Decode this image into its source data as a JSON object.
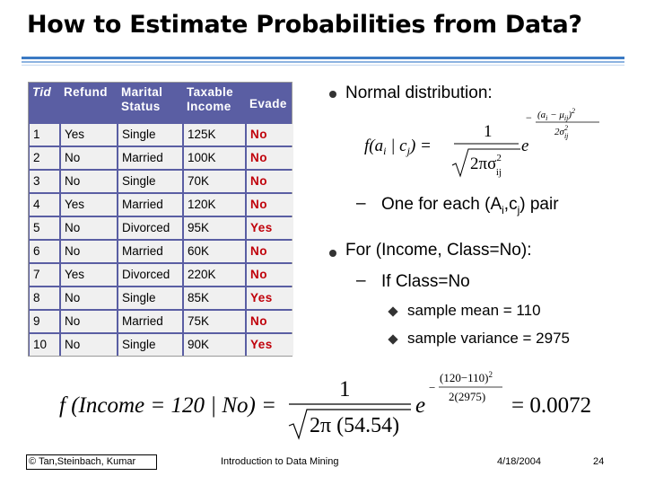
{
  "slide": {
    "title": "How to Estimate Probabilities from Data?"
  },
  "table": {
    "headers": [
      {
        "line1": "Tid",
        "line2": ""
      },
      {
        "line1": "Refund",
        "line2": ""
      },
      {
        "line1": "Marital",
        "line2": "Status"
      },
      {
        "line1": "Taxable",
        "line2": "Income"
      },
      {
        "line1": "Evade",
        "line2": ""
      }
    ],
    "rows": [
      [
        "1",
        "Yes",
        "Single",
        "125K",
        "No"
      ],
      [
        "2",
        "No",
        "Married",
        "100K",
        "No"
      ],
      [
        "3",
        "No",
        "Single",
        "70K",
        "No"
      ],
      [
        "4",
        "Yes",
        "Married",
        "120K",
        "No"
      ],
      [
        "5",
        "No",
        "Divorced",
        "95K",
        "Yes"
      ],
      [
        "6",
        "No",
        "Married",
        "60K",
        "No"
      ],
      [
        "7",
        "Yes",
        "Divorced",
        "220K",
        "No"
      ],
      [
        "8",
        "No",
        "Single",
        "85K",
        "Yes"
      ],
      [
        "9",
        "No",
        "Married",
        "75K",
        "No"
      ],
      [
        "10",
        "No",
        "Single",
        "90K",
        "Yes"
      ]
    ]
  },
  "bullets": {
    "normal": "Normal distribution:",
    "one_each_prefix": "One for each (A",
    "one_each_sub_i": "i",
    "one_each_mid": ",c",
    "one_each_sub_j": "j",
    "one_each_suffix": ") pair",
    "income_class": "For (Income, Class=No):",
    "if_class": "If Class=No",
    "mean": "sample mean = 110",
    "variance": "sample variance = 2975"
  },
  "formula1": {
    "lhs": "f(a",
    "sub_i": "i",
    "given": " | c",
    "sub_j": "j",
    "close": ") =",
    "one": "1",
    "two_pi": "2πσ",
    "sigma_sup": "2",
    "sigma_sub": "ij",
    "e": "e",
    "exp_num": "(a",
    "exp_num_sub": "i",
    "exp_num_mid": " − μ",
    "exp_num_sub2": "ij",
    "exp_num_close": ")",
    "exp_num_sq": "2",
    "exp_den": "2σ",
    "exp_den_sup": "2",
    "exp_den_sub": "ij",
    "minus": "−"
  },
  "formula2": {
    "lhs": "f (Income = 120 | No) =",
    "one": "1",
    "den": "2π (54.54)",
    "e": "e",
    "exp_minus": "−",
    "exp_num": "(120−110)",
    "exp_num_sq": "2",
    "exp_den": "2(2975)",
    "result": "= 0.0072"
  },
  "footer": {
    "copyright": "© Tan,Steinbach, Kumar",
    "course": "Introduction to Data Mining",
    "date": "4/18/2004",
    "page": "24"
  },
  "colors": {
    "table_header": "#5a5ea3",
    "evade_text": "#c0000a",
    "title_rule": "#3b7ac4"
  }
}
